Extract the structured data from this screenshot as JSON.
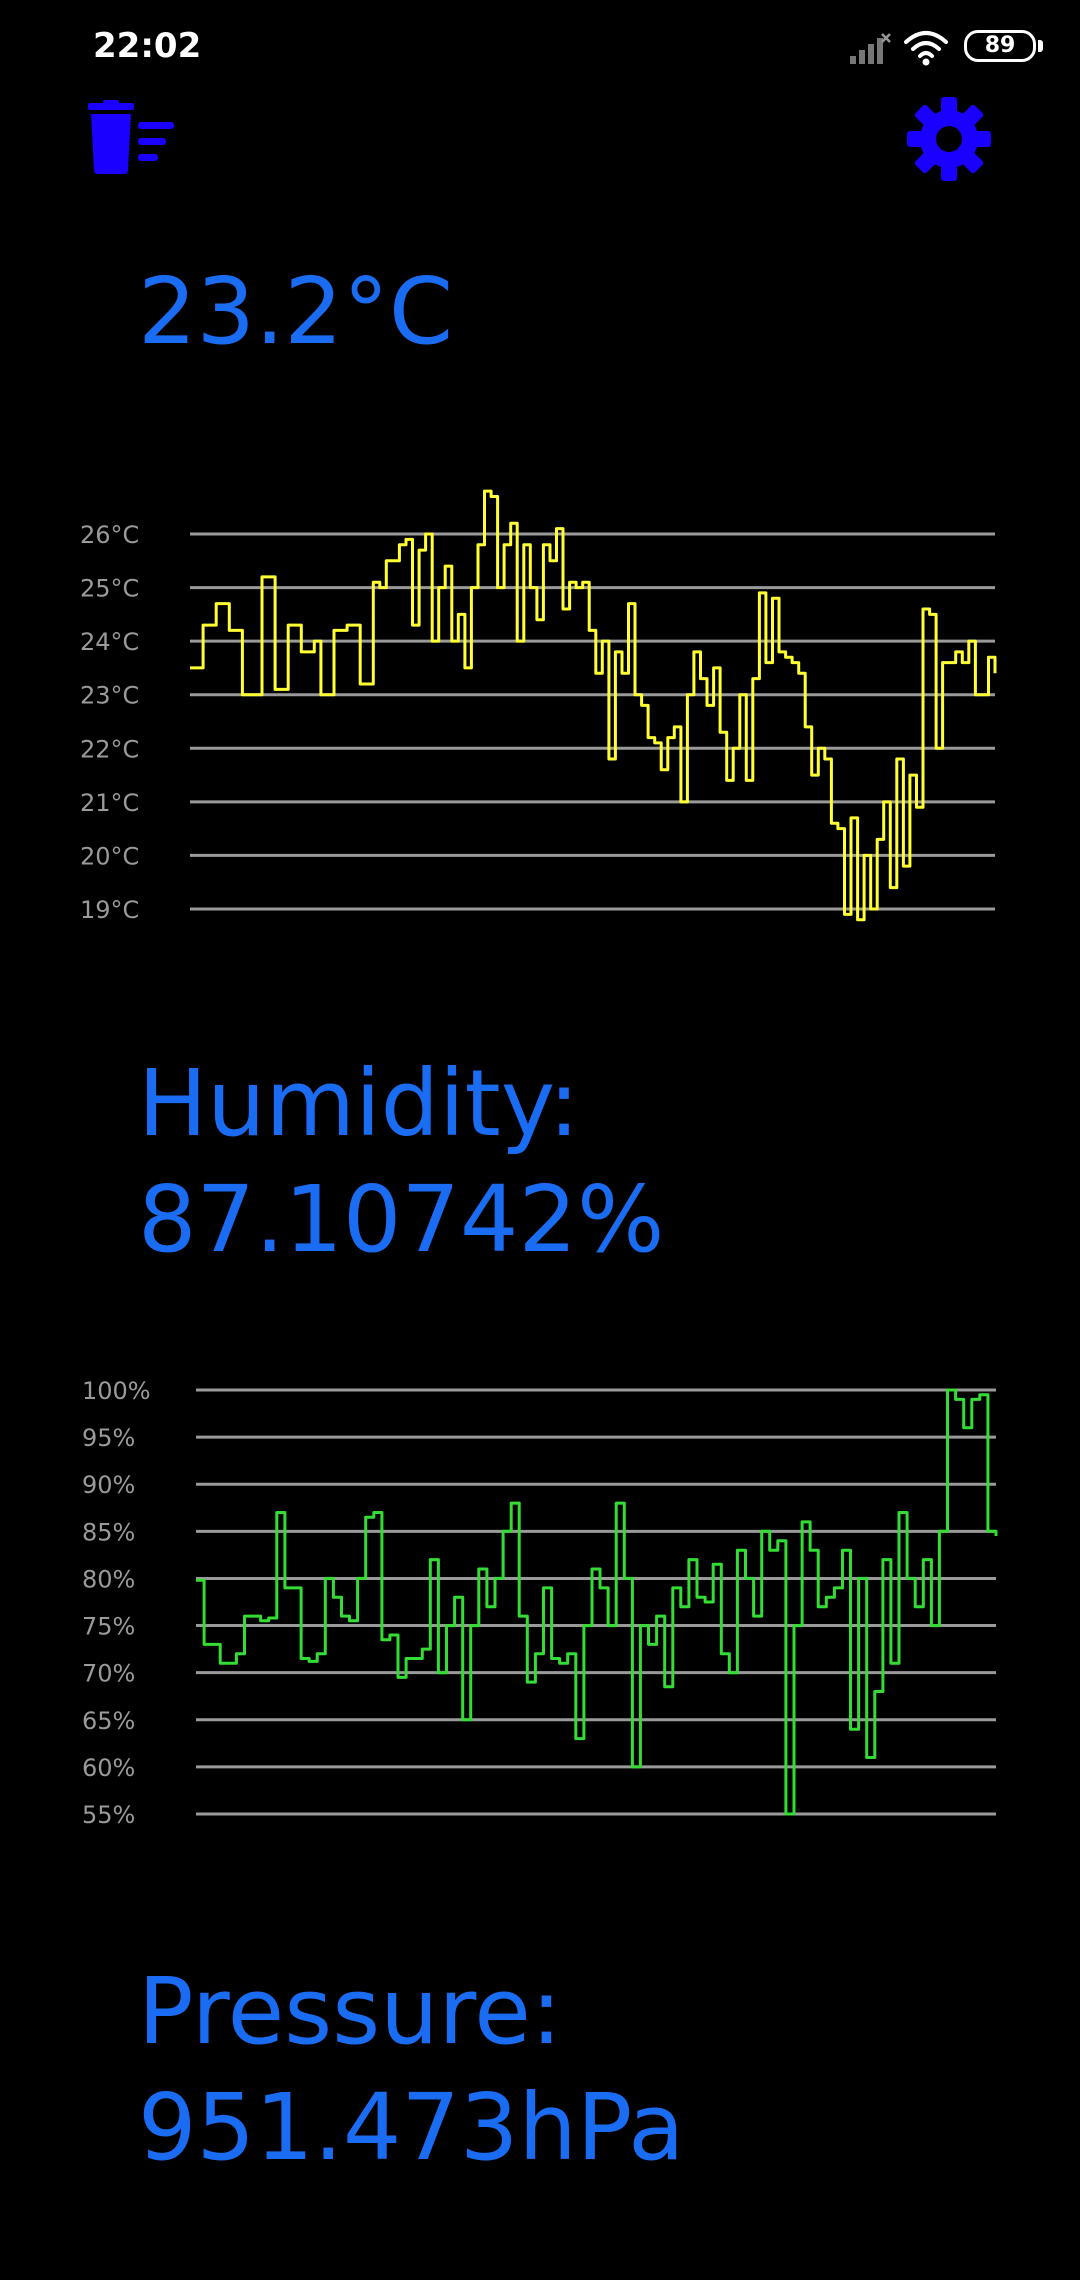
{
  "status_bar": {
    "time": "22:02",
    "battery_level": "89"
  },
  "toolbar": {
    "clear_icon": "trash-list-icon",
    "settings_icon": "gear-icon",
    "accent_color": "#1a00ff"
  },
  "temperature": {
    "reading": "23.2°C"
  },
  "humidity": {
    "label": "Humidity:",
    "reading": "87.10742%"
  },
  "pressure": {
    "label": "Pressure:",
    "reading": "951.473hPa"
  },
  "chart_data": [
    {
      "type": "line",
      "ylim": [
        19,
        26
      ],
      "yticks": [
        26,
        25,
        24,
        23,
        22,
        21,
        20,
        19
      ],
      "tick_labels": [
        "26°C",
        "25°C",
        "24°C",
        "23°C",
        "22°C",
        "21°C",
        "20°C",
        "19°C"
      ],
      "grid": true,
      "color": "#ffff33",
      "series": [
        {
          "values": [
            23.5,
            23.5,
            24.3,
            24.3,
            24.7,
            24.7,
            24.2,
            24.2,
            23.0,
            23.0,
            23.0,
            25.2,
            25.2,
            23.1,
            23.1,
            24.3,
            24.3,
            23.8,
            23.8,
            24.0,
            23.0,
            23.0,
            24.2,
            24.2,
            24.3,
            24.3,
            23.2,
            23.2,
            25.1,
            25.0,
            25.5,
            25.5,
            25.8,
            25.9,
            24.3,
            25.7,
            26.0,
            24.0,
            25.0,
            25.4,
            24.0,
            24.5,
            23.5,
            25.0,
            25.8,
            26.8,
            26.7,
            25.0,
            25.8,
            26.2,
            24.0,
            25.8,
            25.0,
            24.4,
            25.8,
            25.5,
            26.1,
            24.6,
            25.1,
            25.0,
            25.1,
            24.2,
            23.4,
            24.0,
            21.8,
            23.8,
            23.4,
            24.7,
            23.0,
            22.8,
            22.2,
            22.1,
            21.6,
            22.2,
            22.4,
            21.0,
            23.0,
            23.8,
            23.3,
            22.8,
            23.5,
            22.3,
            21.4,
            22.0,
            23.0,
            21.4,
            23.3,
            24.9,
            23.6,
            24.8,
            23.8,
            23.7,
            23.6,
            23.4,
            22.4,
            21.5,
            22.0,
            21.8,
            20.6,
            20.5,
            18.9,
            20.7,
            18.8,
            20.0,
            19.0,
            20.3,
            21.0,
            19.4,
            21.8,
            19.8,
            21.5,
            20.9,
            24.6,
            24.5,
            22.0,
            23.6,
            23.6,
            23.8,
            23.6,
            24.0,
            23.0,
            23.0,
            23.7,
            23.4
          ]
        }
      ]
    },
    {
      "type": "line",
      "ylim": [
        55,
        100
      ],
      "yticks": [
        100,
        95,
        90,
        85,
        80,
        75,
        70,
        65,
        60,
        55
      ],
      "tick_labels": [
        "100%",
        "95%",
        "90%",
        "85%",
        "80%",
        "75%",
        "70%",
        "65%",
        "60%",
        "55%"
      ],
      "grid": true,
      "color": "#33dd33",
      "series": [
        {
          "values": [
            79.8,
            73.0,
            73.0,
            71.0,
            71.0,
            72.0,
            76.0,
            76.0,
            75.5,
            75.8,
            87.0,
            79.0,
            79.0,
            71.5,
            71.2,
            72.0,
            80.0,
            78.0,
            76.0,
            75.5,
            80.0,
            86.5,
            87.0,
            73.5,
            74.0,
            69.5,
            71.5,
            71.5,
            72.5,
            82.0,
            70.0,
            75.0,
            78.0,
            65.0,
            75.0,
            81.0,
            77.0,
            80.0,
            85.0,
            88.0,
            76.0,
            69.0,
            72.0,
            79.0,
            71.5,
            71.0,
            72.0,
            63.0,
            75.0,
            81.0,
            79.0,
            75.0,
            88.0,
            80.0,
            60.0,
            75.0,
            73.0,
            76.0,
            68.5,
            79.0,
            77.0,
            82.0,
            78.0,
            77.5,
            81.5,
            72.0,
            70.0,
            83.0,
            80.0,
            76.0,
            85.0,
            83.0,
            84.0,
            55.0,
            75.0,
            86.0,
            83.0,
            77.0,
            78.0,
            79.0,
            83.0,
            64.0,
            80.0,
            61.0,
            68.0,
            82.0,
            71.0,
            87.0,
            80.0,
            77.0,
            82.0,
            75.0,
            85.0,
            100.0,
            99.0,
            96.0,
            99.0,
            99.5,
            85.0,
            84.5
          ]
        }
      ]
    }
  ]
}
